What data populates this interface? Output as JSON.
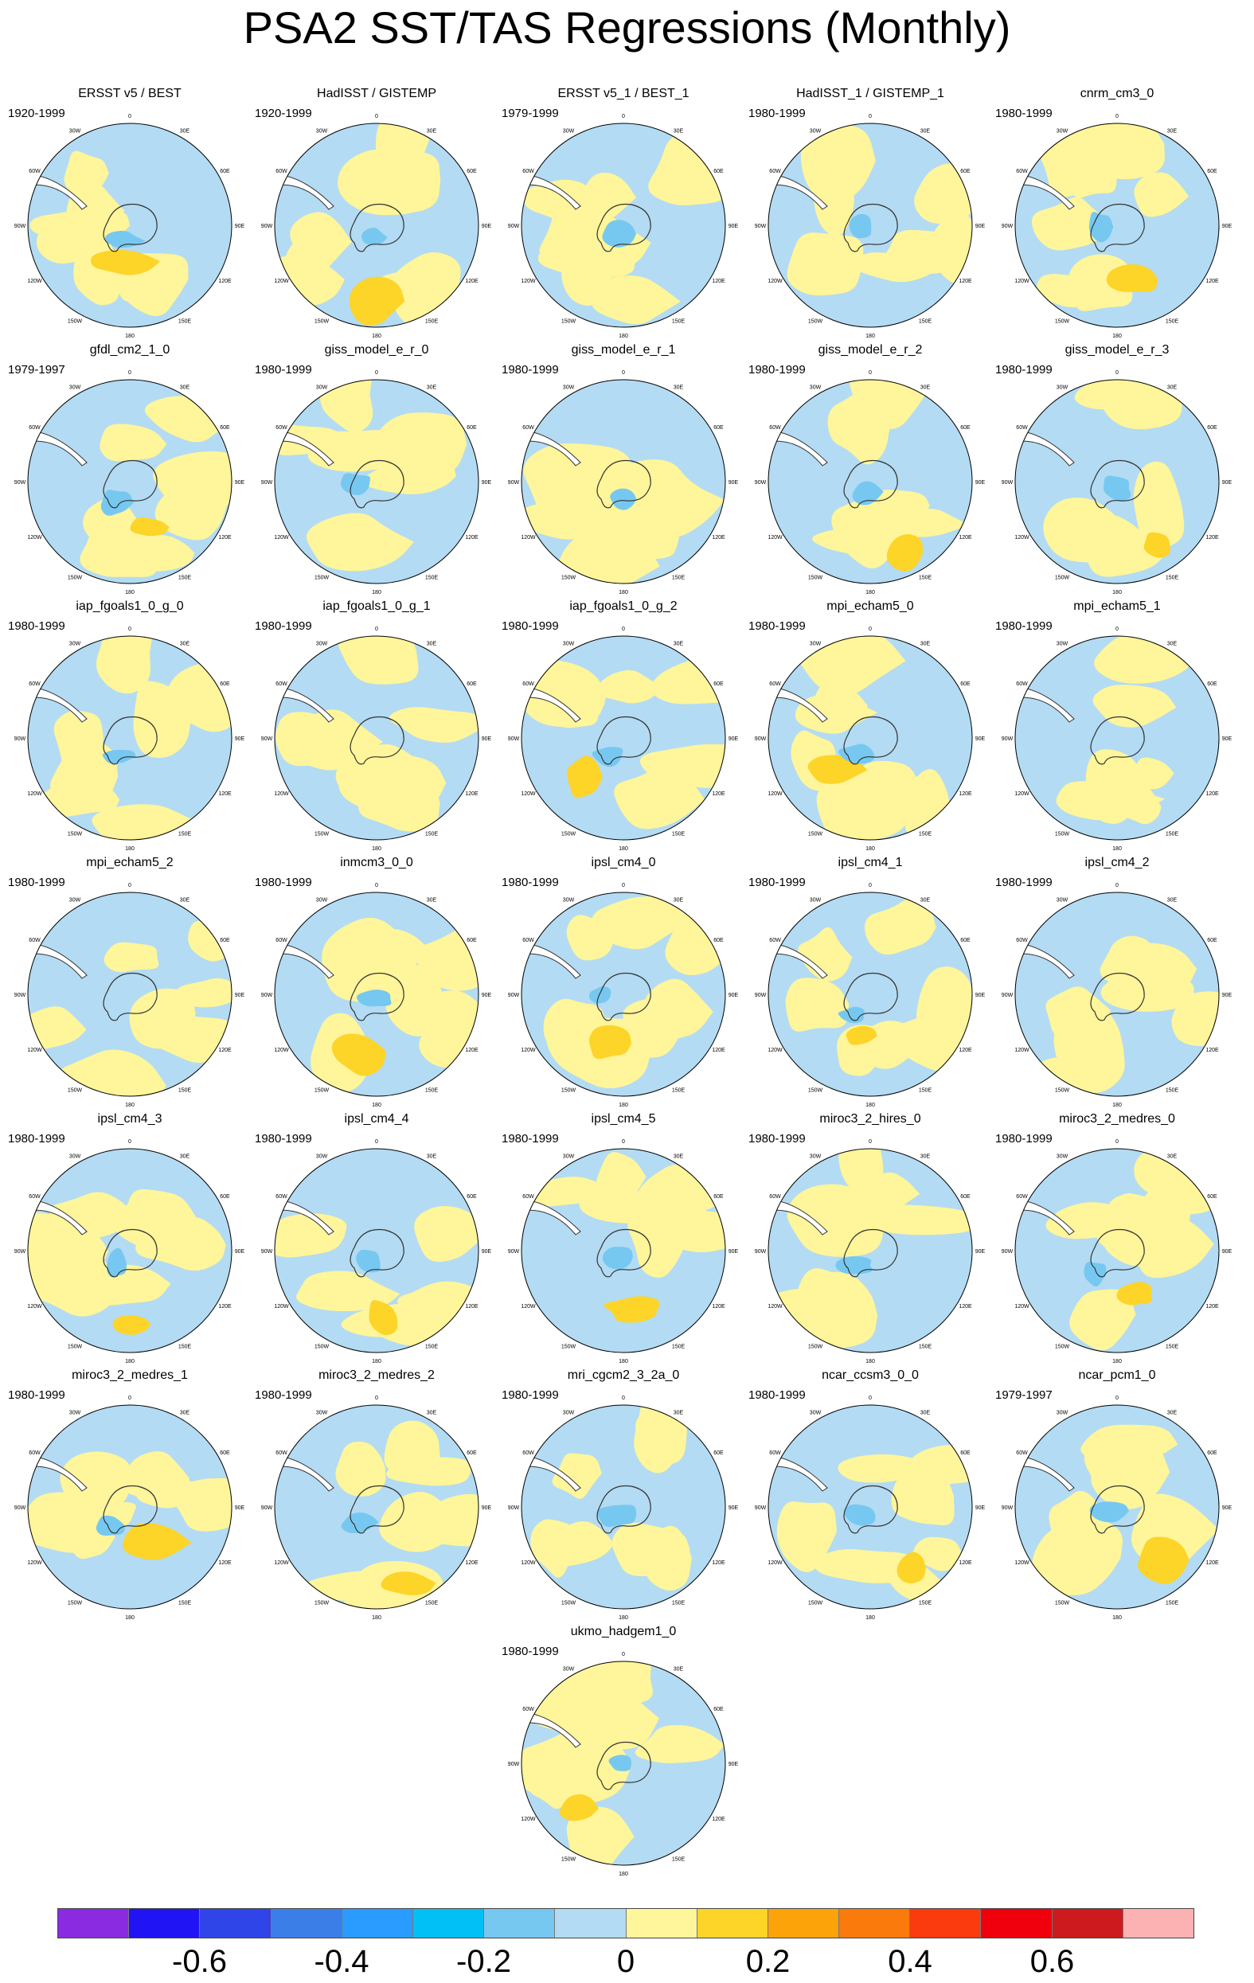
{
  "title": "PSA2 SST/TAS Regressions (Monthly)",
  "colors": {
    "neg_small": "#b3dbf3",
    "pos_small": "#fff59a",
    "pos_mid": "#fdd428",
    "neg_mid": "#76c8f1",
    "land_line": "#333333",
    "ocean_white": "#ffffff"
  },
  "map_labels": {
    "top": "0",
    "left": "90W",
    "right": "90E",
    "bottom": "180",
    "upper_left": "60W",
    "upper_right": "60E",
    "lower_left": "120W",
    "lower_right": "120E",
    "top_left": "30W",
    "top_right": "30E",
    "bottom_left": "150W",
    "bottom_right": "150E"
  },
  "colorbar": {
    "colors": [
      "#8a2be2",
      "#2014f5",
      "#2f45e8",
      "#3c7ee8",
      "#2a9cff",
      "#00c0f6",
      "#76c8f1",
      "#b3dbf3",
      "#fff59a",
      "#fdd428",
      "#fca30a",
      "#fb7a0c",
      "#fb3a0d",
      "#f0000c",
      "#cd1a1e",
      "#fcb2b3"
    ],
    "labels": [
      {
        "text": "-0.6",
        "index": 2
      },
      {
        "text": "-0.4",
        "index": 4
      },
      {
        "text": "-0.2",
        "index": 6
      },
      {
        "text": "0",
        "index": 8
      },
      {
        "text": "0.2",
        "index": 10
      },
      {
        "text": "0.4",
        "index": 12
      },
      {
        "text": "0.6",
        "index": 14
      }
    ]
  },
  "chart_data": {
    "type": "heatmap",
    "title": "PSA2 SST/TAS Regressions (Monthly)",
    "projection": "south polar stereographic",
    "contour_levels": [
      -0.7,
      -0.6,
      -0.5,
      -0.4,
      -0.3,
      -0.2,
      -0.1,
      0,
      0.1,
      0.2,
      0.3,
      0.4,
      0.5,
      0.6,
      0.7
    ],
    "panels": [
      {
        "name": "ERSST v5 / BEST",
        "period": "1920-1999",
        "pattern": 0
      },
      {
        "name": "HadISST / GISTEMP",
        "period": "1920-1999",
        "pattern": 1
      },
      {
        "name": "ERSST v5_1 / BEST_1",
        "period": "1979-1999",
        "pattern": 2
      },
      {
        "name": "HadISST_1 / GISTEMP_1",
        "period": "1980-1999",
        "pattern": 3
      },
      {
        "name": "cnrm_cm3_0",
        "period": "1980-1999",
        "pattern": 4
      },
      {
        "name": "gfdl_cm2_1_0",
        "period": "1979-1997",
        "pattern": 5
      },
      {
        "name": "giss_model_e_r_0",
        "period": "1980-1999",
        "pattern": 6
      },
      {
        "name": "giss_model_e_r_1",
        "period": "1980-1999",
        "pattern": 7
      },
      {
        "name": "giss_model_e_r_2",
        "period": "1980-1999",
        "pattern": 8
      },
      {
        "name": "giss_model_e_r_3",
        "period": "1980-1999",
        "pattern": 9
      },
      {
        "name": "iap_fgoals1_0_g_0",
        "period": "1980-1999",
        "pattern": 10
      },
      {
        "name": "iap_fgoals1_0_g_1",
        "period": "1980-1999",
        "pattern": 11
      },
      {
        "name": "iap_fgoals1_0_g_2",
        "period": "1980-1999",
        "pattern": 12
      },
      {
        "name": "mpi_echam5_0",
        "period": "1980-1999",
        "pattern": 13
      },
      {
        "name": "mpi_echam5_1",
        "period": "1980-1999",
        "pattern": 14
      },
      {
        "name": "mpi_echam5_2",
        "period": "1980-1999",
        "pattern": 15
      },
      {
        "name": "inmcm3_0_0",
        "period": "1980-1999",
        "pattern": 16
      },
      {
        "name": "ipsl_cm4_0",
        "period": "1980-1999",
        "pattern": 17
      },
      {
        "name": "ipsl_cm4_1",
        "period": "1980-1999",
        "pattern": 18
      },
      {
        "name": "ipsl_cm4_2",
        "period": "1980-1999",
        "pattern": 19
      },
      {
        "name": "ipsl_cm4_3",
        "period": "1980-1999",
        "pattern": 20
      },
      {
        "name": "ipsl_cm4_4",
        "period": "1980-1999",
        "pattern": 21
      },
      {
        "name": "ipsl_cm4_5",
        "period": "1980-1999",
        "pattern": 22
      },
      {
        "name": "miroc3_2_hires_0",
        "period": "1980-1999",
        "pattern": 23
      },
      {
        "name": "miroc3_2_medres_0",
        "period": "1980-1999",
        "pattern": 24
      },
      {
        "name": "miroc3_2_medres_1",
        "period": "1980-1999",
        "pattern": 25
      },
      {
        "name": "miroc3_2_medres_2",
        "period": "1980-1999",
        "pattern": 26
      },
      {
        "name": "mri_cgcm2_3_2a_0",
        "period": "1980-1999",
        "pattern": 27
      },
      {
        "name": "ncar_ccsm3_0_0",
        "period": "1980-1999",
        "pattern": 28
      },
      {
        "name": "ncar_pcm1_0",
        "period": "1979-1997",
        "pattern": 29
      },
      {
        "name": "ukmo_hadgem1_0",
        "period": "1980-1999",
        "pattern": 30
      }
    ]
  }
}
